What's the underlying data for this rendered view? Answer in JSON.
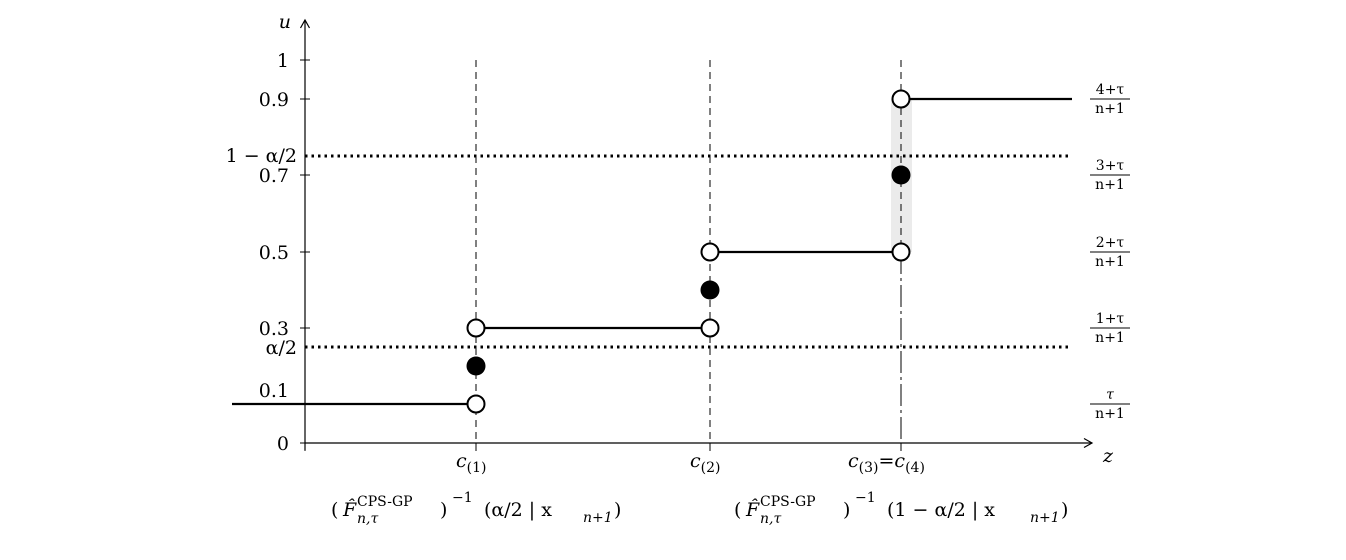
{
  "axes": {
    "x_label": "z",
    "y_label": "u",
    "y_ticks": [
      "0",
      "0.1",
      "0.3",
      "0.5",
      "0.7",
      "0.9",
      "1"
    ],
    "y_tick_values": [
      0,
      0.1,
      0.3,
      0.5,
      0.7,
      0.9,
      1
    ]
  },
  "x_points": {
    "c1": {
      "sym": "c",
      "sub": "(1)"
    },
    "c2": {
      "sym": "c",
      "sub": "(2)"
    },
    "c34": {
      "sym1": "c",
      "sub1": "(3)",
      "eq": "=",
      "sym2": "c",
      "sub2": "(4)"
    }
  },
  "thresholds": {
    "upper": {
      "label": "1 − α/2",
      "value": 0.75
    },
    "lower": {
      "label": "α/2",
      "value": 0.25
    }
  },
  "right_labels": [
    {
      "num": "4+τ",
      "den": "n+1"
    },
    {
      "num": "3+τ",
      "den": "n+1"
    },
    {
      "num": "2+τ",
      "den": "n+1"
    },
    {
      "num": "1+τ",
      "den": "n+1"
    },
    {
      "num": "τ",
      "den": "n+1"
    }
  ],
  "bottom_labels": {
    "left": {
      "F": "F̂",
      "sup": "CPS-GP",
      "sub": "n,τ",
      "exp": "−1",
      "arg": "(α/2 | x",
      "argsub": "n+1",
      "close": ")"
    },
    "right": {
      "F": "F̂",
      "sup": "CPS-GP",
      "sub": "n,τ",
      "exp": "−1",
      "arg": "(1 − α/2 | x",
      "argsub": "n+1",
      "close": ")"
    }
  },
  "chart_data": {
    "type": "step",
    "steps_u": [
      0.1,
      0.3,
      0.5,
      0.9
    ],
    "open_points": [
      {
        "at": "c(1)",
        "u": 0.1
      },
      {
        "at": "c(1)",
        "u": 0.3
      },
      {
        "at": "c(2)",
        "u": 0.3
      },
      {
        "at": "c(2)",
        "u": 0.5
      },
      {
        "at": "c(3)=c(4)",
        "u": 0.5
      },
      {
        "at": "c(3)=c(4)",
        "u": 0.9
      }
    ],
    "filled_points": [
      {
        "at": "c(1)",
        "u": 0.2
      },
      {
        "at": "c(2)",
        "u": 0.4
      },
      {
        "at": "c(3)=c(4)",
        "u": 0.7
      }
    ],
    "ylim": [
      0,
      1
    ]
  }
}
